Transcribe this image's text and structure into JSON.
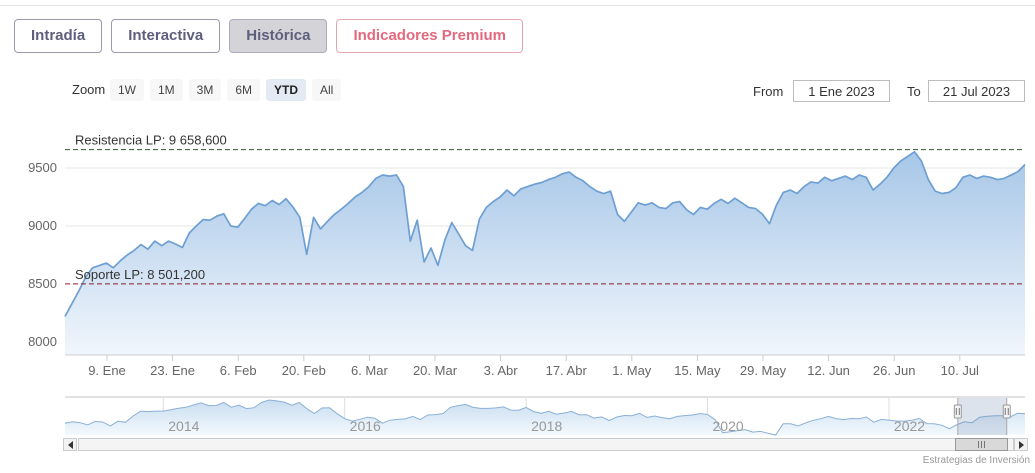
{
  "colors": {
    "line": "#6d9fd2",
    "fill_top": "#a6c6e7",
    "fill_bottom": "#f0f6fc",
    "grid": "#e6e6e6",
    "axis": "#cccccc",
    "tick_text": "#666666",
    "resistance": "#2e5a30",
    "support": "#8a1f33",
    "annotation_text": "#333333",
    "nav_line": "#8ab0d6",
    "nav_fill_top": "#c9ddf0",
    "nav_fill_bottom": "#f3f9fd",
    "nav_grid": "#dddddd",
    "nav_text": "#999999",
    "nav_mask": "rgba(118,142,178,0.25)"
  },
  "tabs": [
    {
      "label": "Intradía",
      "active": false,
      "premium": false
    },
    {
      "label": "Interactiva",
      "active": false,
      "premium": false
    },
    {
      "label": "Histórica",
      "active": true,
      "premium": false
    },
    {
      "label": "Indicadores Premium",
      "active": false,
      "premium": true
    }
  ],
  "toolbar": {
    "zoom_label": "Zoom",
    "ranges": [
      {
        "label": "1W",
        "selected": false
      },
      {
        "label": "1M",
        "selected": false
      },
      {
        "label": "3M",
        "selected": false
      },
      {
        "label": "6M",
        "selected": false
      },
      {
        "label": "YTD",
        "selected": true
      },
      {
        "label": "All",
        "selected": false
      }
    ],
    "from_label": "From",
    "from_value": "1 Ene 2023",
    "to_label": "To",
    "to_value": "21 Jul 2023"
  },
  "credits": "Estrategias de Inversión",
  "chart_data": {
    "type": "area",
    "title": "",
    "x_axis": {
      "tick_labels": [
        "9. Ene",
        "23. Ene",
        "6. Feb",
        "20. Feb",
        "6. Mar",
        "20. Mar",
        "3. Abr",
        "17. Abr",
        "1. May",
        "15. May",
        "29. May",
        "12. Jun",
        "26. Jun",
        "10. Jul"
      ]
    },
    "y_axis": {
      "ticks": [
        {
          "label": "8000",
          "value": 8000
        },
        {
          "label": "8500",
          "value": 8500
        },
        {
          "label": "9000",
          "value": 9000
        },
        {
          "label": "9500",
          "value": 9500
        }
      ],
      "min": 7900,
      "max": 9750
    },
    "annotations": [
      {
        "label": "Resistencia LP: 9 658,600",
        "value": 9658.6,
        "color": "resistance"
      },
      {
        "label": "Soporte LP: 8 501,200",
        "value": 8501.2,
        "color": "support"
      }
    ],
    "series": {
      "name": "precio",
      "values": [
        8220,
        8330,
        8440,
        8560,
        8640,
        8660,
        8680,
        8640,
        8700,
        8750,
        8790,
        8840,
        8800,
        8870,
        8830,
        8870,
        8845,
        8815,
        8940,
        9000,
        9055,
        9050,
        9085,
        9105,
        9000,
        8990,
        9065,
        9145,
        9195,
        9175,
        9220,
        9185,
        9235,
        9165,
        9075,
        8755,
        9075,
        8975,
        9040,
        9100,
        9145,
        9195,
        9250,
        9290,
        9340,
        9410,
        9440,
        9430,
        9440,
        9340,
        8870,
        9050,
        8690,
        8810,
        8660,
        8880,
        9030,
        8930,
        8830,
        8790,
        9060,
        9160,
        9210,
        9250,
        9310,
        9260,
        9320,
        9340,
        9360,
        9375,
        9400,
        9420,
        9450,
        9465,
        9420,
        9390,
        9340,
        9300,
        9280,
        9300,
        9100,
        9040,
        9120,
        9200,
        9180,
        9200,
        9160,
        9150,
        9200,
        9210,
        9140,
        9100,
        9160,
        9145,
        9195,
        9230,
        9195,
        9240,
        9200,
        9160,
        9150,
        9100,
        9020,
        9180,
        9290,
        9310,
        9280,
        9340,
        9380,
        9370,
        9420,
        9390,
        9410,
        9430,
        9400,
        9440,
        9420,
        9310,
        9360,
        9420,
        9500,
        9560,
        9600,
        9640,
        9560,
        9400,
        9300,
        9280,
        9290,
        9330,
        9420,
        9440,
        9410,
        9430,
        9420,
        9400,
        9410,
        9440,
        9470,
        9530
      ]
    },
    "navigator": {
      "year_labels": [
        {
          "label": "2014",
          "month_index": 13
        },
        {
          "label": "2016",
          "month_index": 37
        },
        {
          "label": "2018",
          "month_index": 61
        },
        {
          "label": "2020",
          "month_index": 85
        },
        {
          "label": "2022",
          "month_index": 109
        }
      ],
      "values": [
        8168,
        8362,
        8230,
        7920,
        8419,
        8320,
        7763,
        8434,
        8290,
        9186,
        9907,
        9838,
        9916,
        9920,
        10114,
        10340,
        10459,
        10798,
        11100,
        10707,
        10728,
        11174,
        10477,
        10770,
        10280,
        10403,
        11178,
        11521,
        11385,
        11217,
        10769,
        11180,
        10259,
        9560,
        10360,
        10386,
        9544,
        8816,
        8461,
        8723,
        9025,
        8880,
        8163,
        8602,
        8717,
        8779,
        9143,
        8688,
        9352,
        9412,
        9556,
        10463,
        10716,
        10880,
        10445,
        10300,
        10299,
        10381,
        10523,
        10055,
        10044,
        10451,
        9840,
        9600,
        9880,
        9465,
        9622,
        9868,
        9399,
        9389,
        8893,
        9077,
        8540,
        9060,
        9277,
        9240,
        9588,
        9004,
        9199,
        8971,
        8813,
        9150,
        9258,
        9352,
        9549,
        9450,
        8665,
        6785,
        6922,
        7096,
        7231,
        6877,
        6970,
        6716,
        6452,
        8080,
        8074,
        7758,
        8225,
        8580,
        8815,
        9149,
        8821,
        8676,
        8846,
        8796,
        9058,
        8305,
        8714,
        8611,
        8479,
        8445,
        8584,
        8851,
        8099,
        8094,
        7862,
        7366,
        7956,
        8363,
        8229,
        9034,
        9181,
        9233,
        9241,
        9050,
        9593,
        9540
      ],
      "selection": {
        "from": 0.93,
        "to": 0.981
      }
    }
  }
}
